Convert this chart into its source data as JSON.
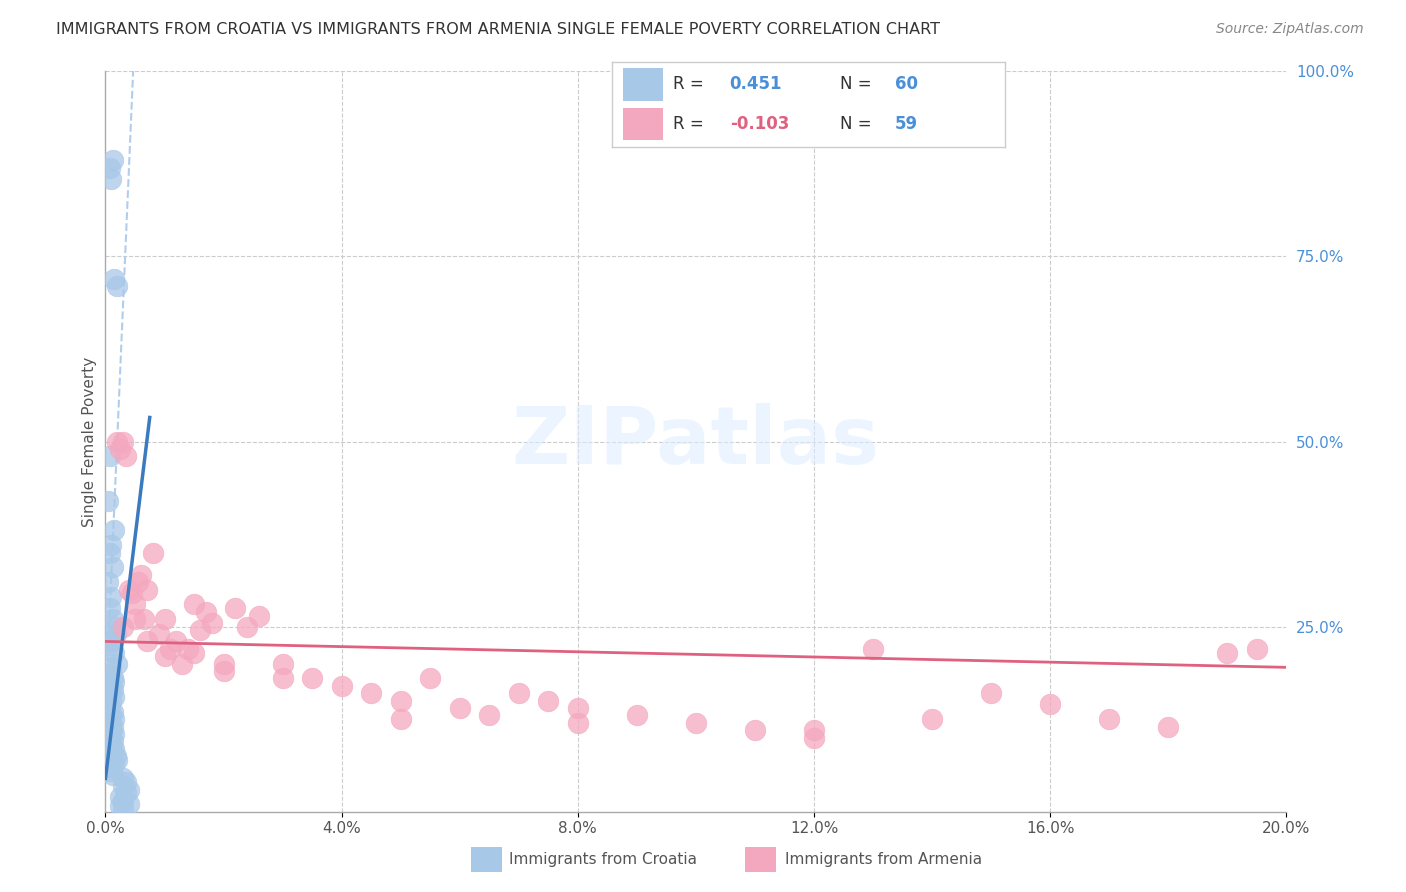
{
  "title": "IMMIGRANTS FROM CROATIA VS IMMIGRANTS FROM ARMENIA SINGLE FEMALE POVERTY CORRELATION CHART",
  "source": "Source: ZipAtlas.com",
  "ylabel": "Single Female Poverty",
  "legend_croatia": "Immigrants from Croatia",
  "legend_armenia": "Immigrants from Armenia",
  "R_croatia": 0.451,
  "N_croatia": 60,
  "R_armenia": -0.103,
  "N_armenia": 59,
  "color_croatia": "#a8c8e8",
  "color_armenia": "#f4a8c0",
  "color_croatia_line": "#3a7abf",
  "color_armenia_line": "#e06080",
  "color_dashed": "#a8c8e8",
  "xlim": [
    0.0,
    0.2
  ],
  "ylim": [
    0.0,
    1.0
  ],
  "background_color": "#ffffff",
  "croatia_x": [
    0.0008,
    0.0012,
    0.001,
    0.0015,
    0.002,
    0.0008,
    0.0005,
    0.0015,
    0.001,
    0.0008,
    0.0012,
    0.0005,
    0.001,
    0.0008,
    0.0012,
    0.0015,
    0.0018,
    0.001,
    0.0008,
    0.0015,
    0.002,
    0.001,
    0.0008,
    0.0012,
    0.0015,
    0.001,
    0.0012,
    0.0008,
    0.0015,
    0.001,
    0.0005,
    0.0008,
    0.0012,
    0.001,
    0.0015,
    0.0008,
    0.0012,
    0.001,
    0.0015,
    0.0008,
    0.0012,
    0.001,
    0.0015,
    0.0008,
    0.0018,
    0.002,
    0.0015,
    0.001,
    0.0008,
    0.0012,
    0.003,
    0.0035,
    0.003,
    0.004,
    0.0035,
    0.0025,
    0.003,
    0.004,
    0.0025,
    0.003
  ],
  "croatia_y": [
    0.87,
    0.88,
    0.855,
    0.72,
    0.71,
    0.48,
    0.42,
    0.38,
    0.36,
    0.35,
    0.33,
    0.31,
    0.29,
    0.275,
    0.26,
    0.25,
    0.24,
    0.23,
    0.225,
    0.215,
    0.2,
    0.195,
    0.185,
    0.18,
    0.175,
    0.17,
    0.165,
    0.16,
    0.155,
    0.15,
    0.145,
    0.14,
    0.135,
    0.13,
    0.125,
    0.12,
    0.115,
    0.11,
    0.105,
    0.1,
    0.095,
    0.09,
    0.085,
    0.08,
    0.075,
    0.07,
    0.065,
    0.06,
    0.055,
    0.05,
    0.045,
    0.04,
    0.035,
    0.03,
    0.025,
    0.02,
    0.015,
    0.01,
    0.008,
    0.005
  ],
  "armenia_x": [
    0.002,
    0.0025,
    0.003,
    0.0035,
    0.004,
    0.0045,
    0.005,
    0.0055,
    0.006,
    0.0065,
    0.007,
    0.008,
    0.009,
    0.01,
    0.011,
    0.012,
    0.013,
    0.014,
    0.015,
    0.016,
    0.017,
    0.018,
    0.02,
    0.022,
    0.024,
    0.026,
    0.03,
    0.035,
    0.04,
    0.045,
    0.05,
    0.055,
    0.06,
    0.065,
    0.07,
    0.075,
    0.08,
    0.09,
    0.1,
    0.11,
    0.12,
    0.13,
    0.14,
    0.15,
    0.16,
    0.17,
    0.18,
    0.19,
    0.003,
    0.005,
    0.007,
    0.01,
    0.015,
    0.02,
    0.03,
    0.05,
    0.08,
    0.12,
    0.195
  ],
  "armenia_y": [
    0.5,
    0.49,
    0.5,
    0.48,
    0.3,
    0.295,
    0.28,
    0.31,
    0.32,
    0.26,
    0.3,
    0.35,
    0.24,
    0.26,
    0.22,
    0.23,
    0.2,
    0.22,
    0.215,
    0.245,
    0.27,
    0.255,
    0.19,
    0.275,
    0.25,
    0.265,
    0.2,
    0.18,
    0.17,
    0.16,
    0.15,
    0.18,
    0.14,
    0.13,
    0.16,
    0.15,
    0.14,
    0.13,
    0.12,
    0.11,
    0.1,
    0.22,
    0.125,
    0.16,
    0.145,
    0.125,
    0.115,
    0.215,
    0.25,
    0.26,
    0.23,
    0.21,
    0.28,
    0.2,
    0.18,
    0.125,
    0.12,
    0.11,
    0.22
  ]
}
